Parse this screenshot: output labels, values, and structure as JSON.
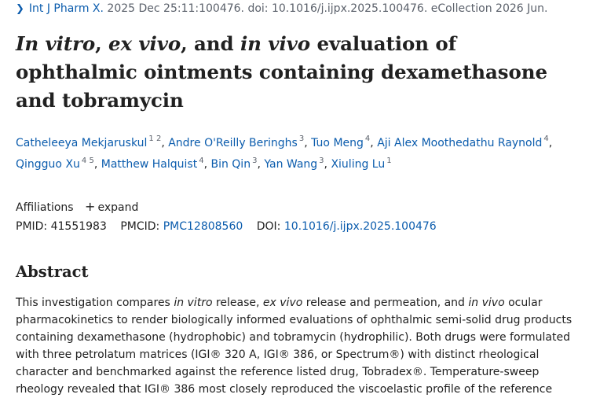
{
  "citation": {
    "chevron_icon": "chevron-right-icon",
    "journal": "Int J Pharm X.",
    "details": " 2025 Dec 25:11:100476. doi: 10.1016/j.ijpx.2025.100476. eCollection 2026 Jun."
  },
  "title": {
    "p1": "In vitro",
    "p2": ", ",
    "p3": "ex vivo",
    "p4": ", and ",
    "p5": "in vivo",
    "p6": " evaluation of ophthalmic ointments containing dexamethasone and tobramycin"
  },
  "authors": [
    {
      "name": "Catheleeya Mekjaruskul",
      "affs": "1 2"
    },
    {
      "name": "Andre O'Reilly Beringhs",
      "affs": "3"
    },
    {
      "name": "Tuo Meng",
      "affs": "4"
    },
    {
      "name": "Aji Alex Moothedathu Raynold",
      "affs": "4"
    },
    {
      "name": "Qingguo Xu",
      "affs": "4 5"
    },
    {
      "name": "Matthew Halquist",
      "affs": "4"
    },
    {
      "name": "Bin Qin",
      "affs": "3"
    },
    {
      "name": "Yan Wang",
      "affs": "3"
    },
    {
      "name": "Xiuling Lu",
      "affs": "1"
    }
  ],
  "affiliations": {
    "label": "Affiliations",
    "expand_label": "expand",
    "expand_icon": "plus-icon"
  },
  "ids": {
    "pmid_label": "PMID:",
    "pmid": "41551983",
    "pmcid_label": "PMCID:",
    "pmcid": "PMC12808560",
    "doi_label": "DOI:",
    "doi": "10.1016/j.ijpx.2025.100476"
  },
  "abstract": {
    "heading": "Abstract",
    "t1": "This investigation compares ",
    "t2": "in vitro",
    "t3": " release, ",
    "t4": "ex vivo",
    "t5": " release and permeation, and ",
    "t6": "in vivo",
    "t7": " ocular pharmacokinetics to render biologically informed evaluations of ophthalmic semi-solid drug products containing dexamethasone (hydrophobic) and tobramycin (hydrophilic). Both drugs were formulated with three petrolatum matrices (IGI® 320 A, IGI® 386, or Spectrum®) with distinct rheological character and benchmarked against the reference listed drug, Tobradex®. Temperature-sweep rheology revealed that IGI® 386 most closely reproduced the viscoelastic profile of the reference"
  }
}
